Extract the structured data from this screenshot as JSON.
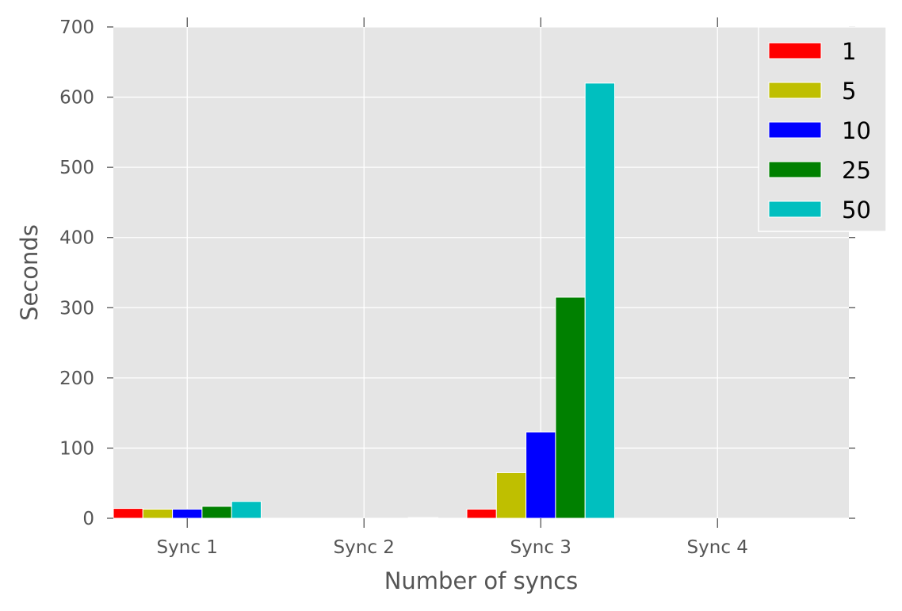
{
  "chart_data": {
    "type": "bar",
    "title": "",
    "xlabel": "Number of syncs",
    "ylabel": "Seconds",
    "categories": [
      "Sync 1",
      "Sync 2",
      "Sync 3",
      "Sync 4"
    ],
    "ylim": [
      0,
      700
    ],
    "yticks": [
      0,
      100,
      200,
      300,
      400,
      500,
      600,
      700
    ],
    "grid": true,
    "legend_position": "top-right",
    "series": [
      {
        "name": "1",
        "color": "#ff0000",
        "values": [
          14,
          0,
          13,
          0
        ]
      },
      {
        "name": "5",
        "color": "#bfbf00",
        "values": [
          13,
          0,
          65,
          0
        ]
      },
      {
        "name": "10",
        "color": "#0000ff",
        "values": [
          13,
          0,
          123,
          0
        ]
      },
      {
        "name": "25",
        "color": "#008000",
        "values": [
          17,
          0,
          315,
          0
        ]
      },
      {
        "name": "50",
        "color": "#00bfbf",
        "values": [
          24,
          1,
          620,
          0
        ]
      }
    ]
  }
}
